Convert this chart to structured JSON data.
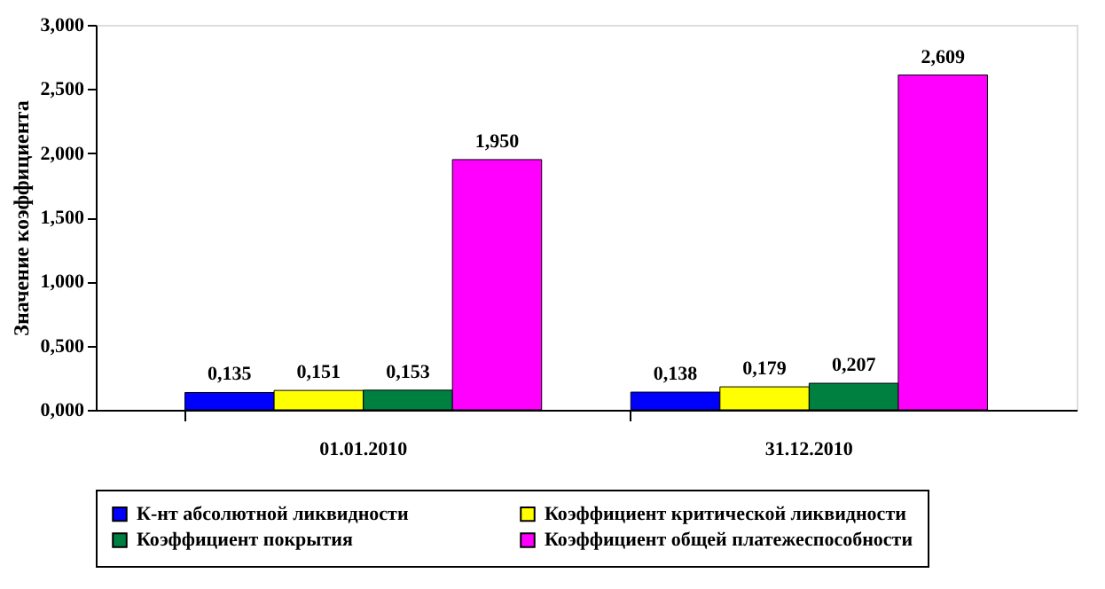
{
  "chart_data": {
    "type": "bar",
    "ylabel": "Значение коэффициента",
    "categories": [
      "01.01.2010",
      "31.12.2010"
    ],
    "series": [
      {
        "name": "К-нт абсолютной ликвидности",
        "color": "#0000ff",
        "values": [
          0.135,
          0.138
        ],
        "value_labels": [
          "0,135",
          "0,138"
        ]
      },
      {
        "name": "Коэффициент критической ликвидности",
        "color": "#ffff00",
        "values": [
          0.151,
          0.179
        ],
        "value_labels": [
          "0,151",
          "0,179"
        ]
      },
      {
        "name": "Коэффициент покрытия",
        "color": "#008040",
        "values": [
          0.153,
          0.207
        ],
        "value_labels": [
          "0,153",
          "0,207"
        ]
      },
      {
        "name": "Коэффициент общей платежеспособности",
        "color": "#ff00ff",
        "values": [
          1.95,
          2.609
        ],
        "value_labels": [
          "1,950",
          "2,609"
        ]
      }
    ],
    "ylim": [
      0,
      3
    ],
    "yticks": [
      {
        "value": 0,
        "label": "0,000"
      },
      {
        "value": 0.5,
        "label": "0,500"
      },
      {
        "value": 1,
        "label": "1,000"
      },
      {
        "value": 1.5,
        "label": "1,500"
      },
      {
        "value": 2,
        "label": "2,000"
      },
      {
        "value": 2.5,
        "label": "2,500"
      },
      {
        "value": 3,
        "label": "3,000"
      }
    ],
    "grid": false,
    "legend": "bottom"
  }
}
